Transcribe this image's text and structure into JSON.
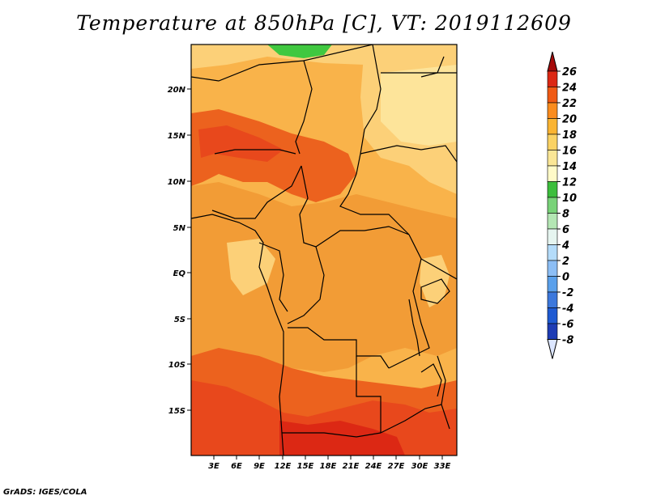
{
  "title": "Temperature at 850hPa [C], VT: 2019112609",
  "credit": "GrADS: IGES/COLA",
  "map": {
    "variable": "Temperature at 850hPa",
    "units": "C",
    "valid_time": "2019112609",
    "lat_labels": [
      "20N",
      "15N",
      "10N",
      "5N",
      "EQ",
      "5S",
      "10S",
      "15S"
    ],
    "lon_labels": [
      "3E",
      "6E",
      "9E",
      "12E",
      "15E",
      "18E",
      "21E",
      "24E",
      "27E",
      "30E",
      "33E"
    ]
  },
  "colorbar": {
    "labels": [
      "26",
      "24",
      "22",
      "20",
      "18",
      "16",
      "14",
      "12",
      "10",
      "8",
      "6",
      "4",
      "2",
      "0",
      "-2",
      "-4",
      "-6",
      "-8"
    ],
    "colors": [
      "#a50a0a",
      "#dc2814",
      "#f05a14",
      "#fa8c1e",
      "#fab432",
      "#fad264",
      "#fae696",
      "#fffac8",
      "#3cbe3c",
      "#78d278",
      "#b4e6b4",
      "#e6f5f0",
      "#b4dcfa",
      "#8cbef5",
      "#5aa0eb",
      "#3c78dc",
      "#1e5ad2",
      "#1e3cb4",
      "#0a1e82",
      "#dce6ff"
    ]
  },
  "legend_colors": {
    "band_21_23": "#ec621e",
    "band_22_24": "#e8481c",
    "band_24_26": "#dc2814",
    "band_23_25": "#e23c14",
    "band_20_22": "#f29c36",
    "band_18_20": "#f9b34a",
    "band_16_18": "#fcd078",
    "band_15_16": "#fde49a",
    "green": "#40c840",
    "land_base": "#f6aa40"
  }
}
